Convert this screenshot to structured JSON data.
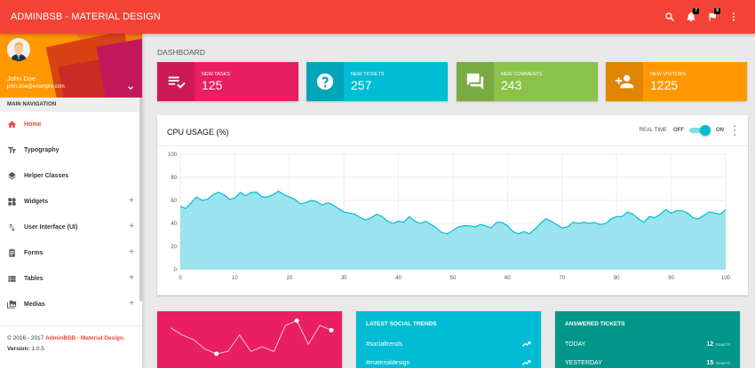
{
  "topbar": {
    "brand": "ADMINBSB - MATERIAL DESIGN",
    "color": "#f44336",
    "icons": [
      {
        "name": "search-icon"
      },
      {
        "name": "bell-icon",
        "badge": "7"
      },
      {
        "name": "flag-icon",
        "badge": "9"
      },
      {
        "name": "more-vert-icon"
      }
    ]
  },
  "user": {
    "name": "John Doe",
    "email": "john.doe@example.com"
  },
  "sidebar": {
    "header": "MAIN NAVIGATION",
    "items": [
      {
        "label": "Home",
        "icon": "home-icon",
        "active": true,
        "expandable": false
      },
      {
        "label": "Typography",
        "icon": "text-fields-icon",
        "active": false,
        "expandable": false
      },
      {
        "label": "Helper Classes",
        "icon": "layers-icon",
        "active": false,
        "expandable": false
      },
      {
        "label": "Widgets",
        "icon": "widgets-icon",
        "active": false,
        "expandable": true
      },
      {
        "label": "User Interface (UI)",
        "icon": "swap-vert-icon",
        "active": false,
        "expandable": true
      },
      {
        "label": "Forms",
        "icon": "assignment-icon",
        "active": false,
        "expandable": true
      },
      {
        "label": "Tables",
        "icon": "view-list-icon",
        "active": false,
        "expandable": true
      },
      {
        "label": "Medias",
        "icon": "perm-media-icon",
        "active": false,
        "expandable": true
      }
    ],
    "expand_symbol": "+",
    "footer": {
      "copyright_prefix": "© 2016 - 2017 ",
      "copyright_link": "AdminBSB - Material Design.",
      "version_label": "Version:",
      "version_value": " 1.0.5"
    }
  },
  "page": {
    "title": "DASHBOARD"
  },
  "info_boxes": [
    {
      "label": "NEW TASKS",
      "value": "125",
      "color": "#e91e63",
      "icon": "playlist-check-icon"
    },
    {
      "label": "NEW TICKETS",
      "value": "257",
      "color": "#00bcd4",
      "icon": "help-icon"
    },
    {
      "label": "NEW COMMENTS",
      "value": "243",
      "color": "#8bc34a",
      "icon": "forum-icon"
    },
    {
      "label": "NEW VISITORS",
      "value": "1225",
      "color": "#ff9800",
      "icon": "person-add-icon"
    }
  ],
  "cpu_card": {
    "title": "CPU USAGE (%)",
    "realtime_label": "REAL TIME",
    "off_label": "OFF",
    "on_label": "ON",
    "switch_on": true
  },
  "chart_data": {
    "type": "area",
    "title": "CPU USAGE (%)",
    "xlabel": "",
    "ylabel": "",
    "xlim": [
      0,
      100
    ],
    "ylim": [
      0,
      100
    ],
    "xticks": [
      0,
      10,
      20,
      30,
      40,
      50,
      60,
      70,
      80,
      90,
      100
    ],
    "yticks": [
      0,
      20,
      40,
      60,
      80,
      100
    ],
    "grid": true,
    "color": "#00bcd4",
    "fill": "#9ae3ef",
    "x": [
      0,
      1,
      2,
      3,
      4,
      5,
      6,
      7,
      8,
      9,
      10,
      11,
      12,
      13,
      14,
      15,
      16,
      17,
      18,
      19,
      20,
      21,
      22,
      23,
      24,
      25,
      26,
      27,
      28,
      29,
      30,
      31,
      32,
      33,
      34,
      35,
      36,
      37,
      38,
      39,
      40,
      41,
      42,
      43,
      44,
      45,
      46,
      47,
      48,
      49,
      50,
      51,
      52,
      53,
      54,
      55,
      56,
      57,
      58,
      59,
      60,
      61,
      62,
      63,
      64,
      65,
      66,
      67,
      68,
      69,
      70,
      71,
      72,
      73,
      74,
      75,
      76,
      77,
      78,
      79,
      80,
      81,
      82,
      83,
      84,
      85,
      86,
      87,
      88,
      89,
      90,
      91,
      92,
      93,
      94,
      95,
      96,
      97,
      98,
      99,
      100
    ],
    "values": [
      55,
      53,
      58,
      63,
      60,
      61,
      65,
      67,
      65,
      61,
      62,
      67,
      64,
      67,
      67,
      63,
      63,
      65,
      68,
      65,
      63,
      61,
      57,
      58,
      60,
      59,
      56,
      58,
      56,
      53,
      50,
      49,
      48,
      45,
      43,
      45,
      48,
      46,
      42,
      40,
      42,
      41,
      46,
      42,
      40,
      42,
      39,
      36,
      32,
      31,
      34,
      37,
      38,
      38,
      37,
      39,
      38,
      36,
      41,
      41,
      38,
      33,
      31,
      33,
      31,
      35,
      40,
      44,
      42,
      39,
      36,
      37,
      41,
      40,
      41,
      40,
      41,
      39,
      40,
      44,
      46,
      46,
      50,
      48,
      44,
      41,
      46,
      45,
      48,
      52,
      49,
      51,
      51,
      49,
      45,
      44,
      47,
      50,
      49,
      48,
      52
    ],
    "series": [
      {
        "name": "CPU Usage",
        "values": "see values"
      }
    ],
    "legend": "none"
  },
  "sparkline_card": {
    "color": "#e91e63",
    "points": [
      7,
      5.5,
      4.5,
      2.5,
      1.5,
      2,
      5.5,
      2,
      3,
      2,
      7.5,
      8.5,
      3.5,
      7.5,
      6.5
    ]
  },
  "social_trends": {
    "title": "LATEST SOCIAL TRENDS",
    "items": [
      {
        "label": "#socialtrends",
        "icon": "trending-up-icon"
      },
      {
        "label": "#materialdesign",
        "icon": "trending-up-icon"
      }
    ]
  },
  "answered_tickets": {
    "title": "ANSWERED TICKETS",
    "unit": "TICKETS",
    "items": [
      {
        "label": "TODAY",
        "value": "12"
      },
      {
        "label": "YESTERDAY",
        "value": "15"
      }
    ]
  }
}
